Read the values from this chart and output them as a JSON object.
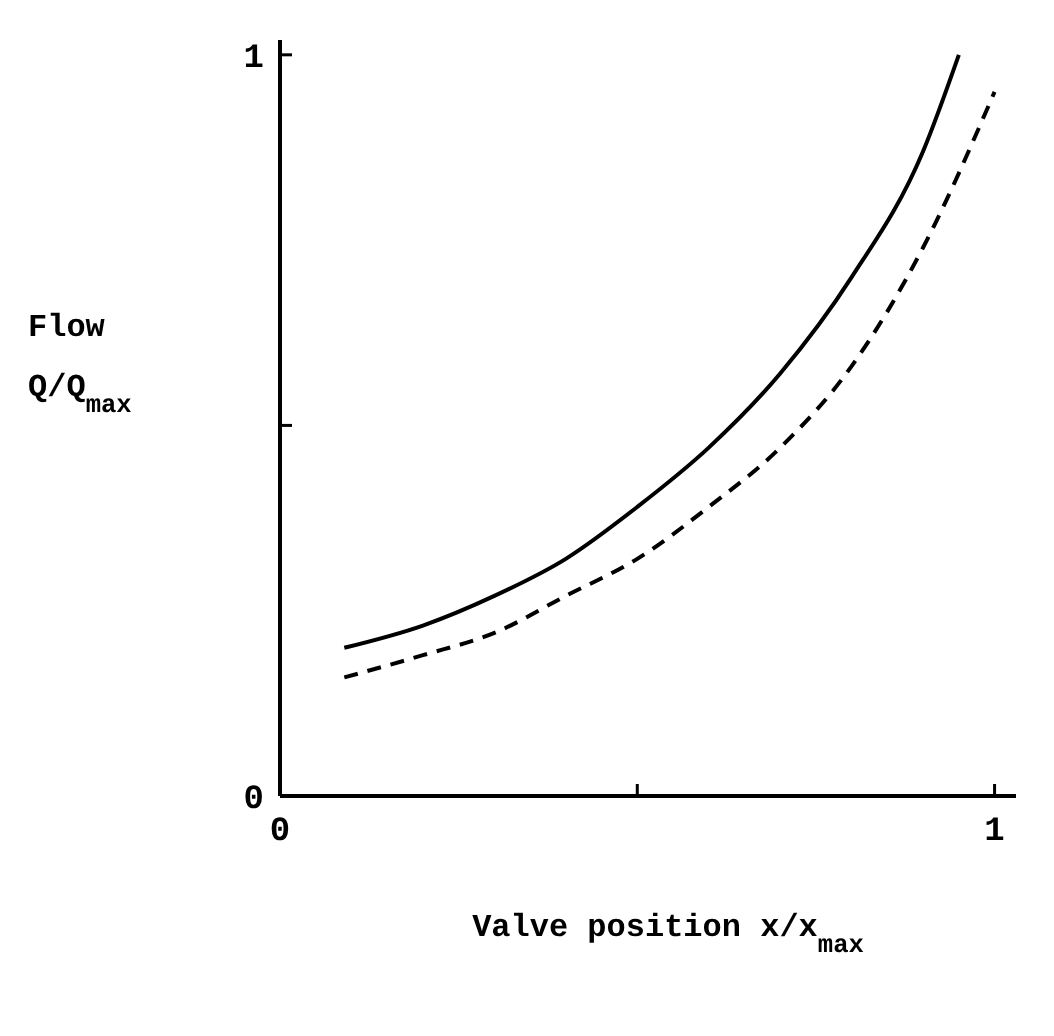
{
  "chart_data": {
    "type": "line",
    "xlabel": "Valve position x/x$_{max}$",
    "ylabel": "Flow Q/Q$_{max}$",
    "xlim": [
      0,
      1.03
    ],
    "ylim": [
      0,
      1.02
    ],
    "xticks": [
      0,
      {
        "value": 0.5,
        "label": null
      },
      1
    ],
    "yticks": [
      0,
      {
        "value": 0.5,
        "label": null
      },
      1
    ],
    "grid": false,
    "marker": "none",
    "series": [
      {
        "color": "#000000",
        "line_style": "solid",
        "x": [
          0.09,
          0.2,
          0.3,
          0.4,
          0.5,
          0.6,
          0.7,
          0.8,
          0.9,
          0.95
        ],
        "values": [
          0.2,
          0.23,
          0.27,
          0.32,
          0.39,
          0.47,
          0.57,
          0.7,
          0.87,
          1.0
        ]
      },
      {
        "color": "#000000",
        "line_style": "dashed",
        "x": [
          0.09,
          0.2,
          0.3,
          0.4,
          0.5,
          0.6,
          0.7,
          0.8,
          0.9,
          1.0
        ],
        "values": [
          0.16,
          0.19,
          0.22,
          0.27,
          0.32,
          0.39,
          0.47,
          0.58,
          0.74,
          0.95
        ]
      }
    ]
  }
}
